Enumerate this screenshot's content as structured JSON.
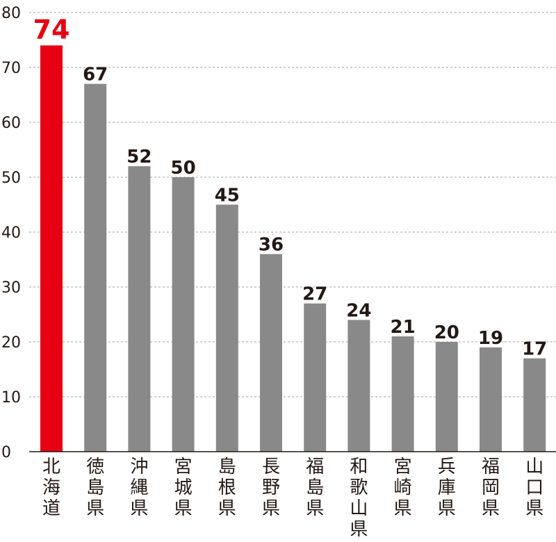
{
  "chart_data": {
    "type": "bar",
    "title": "",
    "xlabel": "",
    "ylabel": "",
    "ylim": [
      0,
      80
    ],
    "yticks": [
      0,
      10,
      20,
      30,
      40,
      50,
      60,
      70,
      80
    ],
    "grid": true,
    "categories": [
      "北海道",
      "徳島県",
      "沖縄県",
      "宮城県",
      "島根県",
      "長野県",
      "福島県",
      "和歌山県",
      "宮崎県",
      "兵庫県",
      "福岡県",
      "山口県"
    ],
    "values": [
      74,
      67,
      52,
      50,
      45,
      36,
      27,
      24,
      21,
      20,
      19,
      17
    ],
    "highlight_index": 0,
    "colors": {
      "bar": "#898989",
      "highlight": "#e60012",
      "text": "#231815",
      "grid": "#a0a0a0"
    }
  }
}
